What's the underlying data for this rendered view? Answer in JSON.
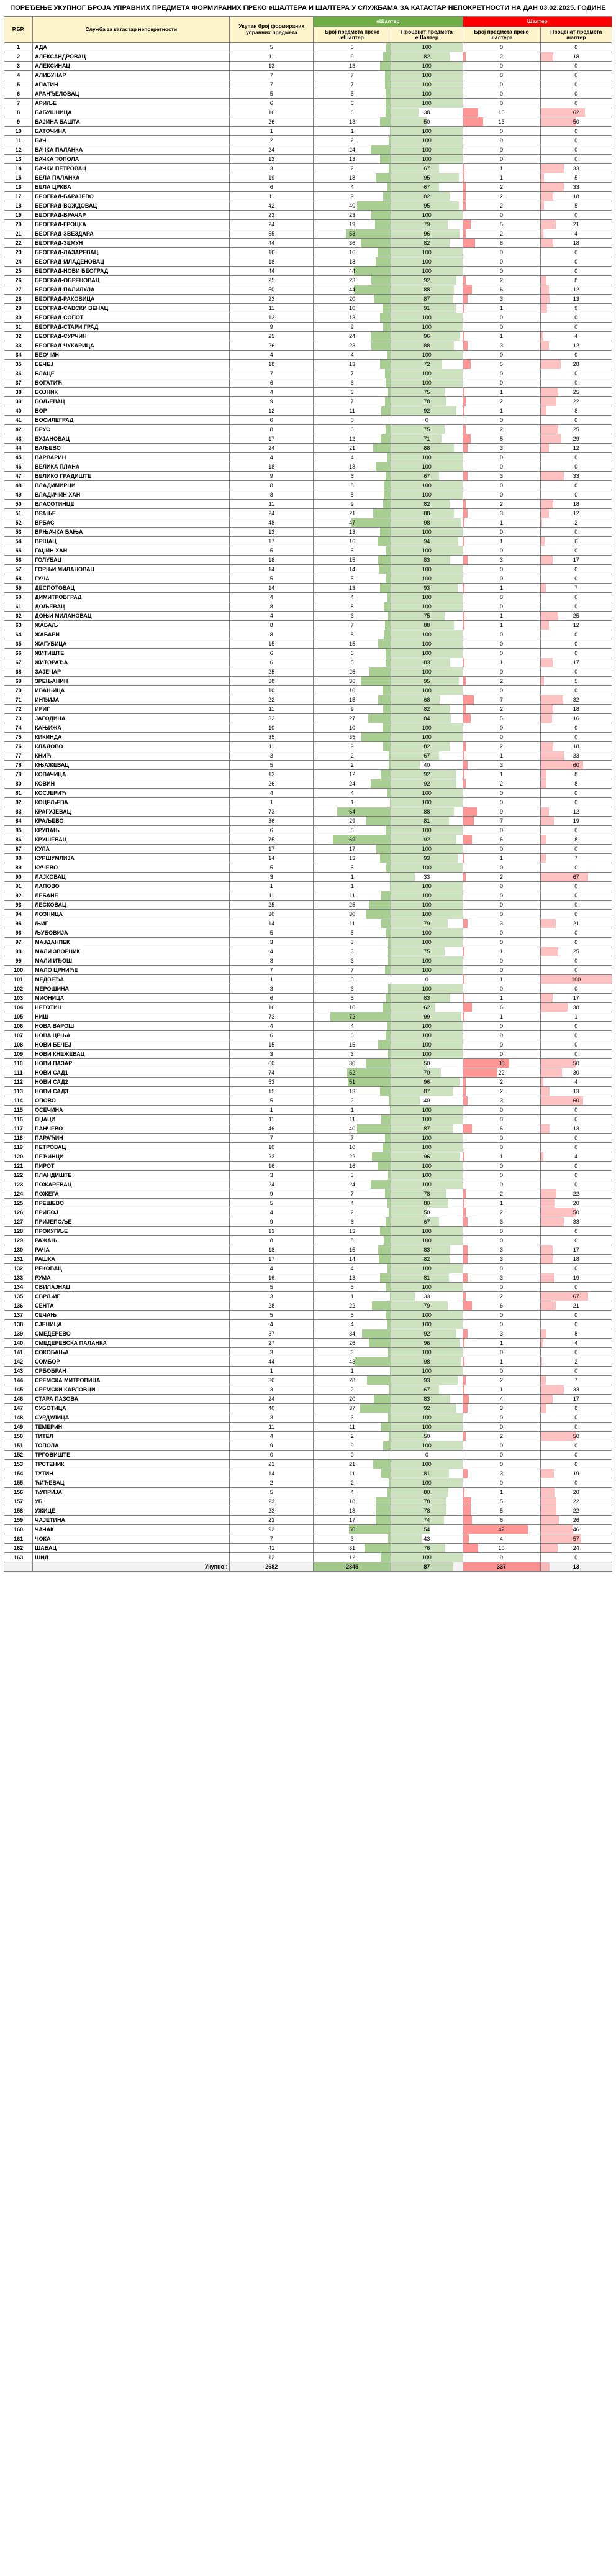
{
  "title": "ПОРЕЂЕЊЕ УКУПНОГ БРОЈА УПРАВНИХ ПРЕДМЕТА ФОРМИРАНИХ ПРЕКО еШАЛТЕРА И ШАЛТЕРА У СЛУЖБАМА ЗА КАТАСТАР НЕПОКРЕТНОСТИ НА ДАН 03.02.2025. ГОДИНЕ",
  "headers": {
    "rb": "Р.БР.",
    "name": "Служба за катастар непокретности",
    "total": "Укупан број формираних управних предмета",
    "e_group": "еШалтер",
    "e_count": "Број предмета преко еШалтер",
    "e_pct": "Проценат предмета еШалтер",
    "s_group": "Шалтер",
    "s_count": "Број предмета преко шалтера",
    "s_pct": "Проценат предмета шалтер"
  },
  "style": {
    "max_e_count": 92,
    "max_s_count": 50,
    "total_e_max": 2345,
    "total_s_max": 337,
    "e_fill": "#70ad47",
    "s_fill": "#ff5050"
  },
  "total_row": {
    "label": "Укупно :",
    "total": 2682,
    "e_count": 2345,
    "e_pct": 87,
    "s_count": 337,
    "s_pct": 13
  },
  "rows": [
    {
      "n": "АДА",
      "t": 5,
      "ec": 5,
      "ep": 100,
      "sc": 0,
      "sp": 0
    },
    {
      "n": "АЛЕКСАНДРОВАЦ",
      "t": 11,
      "ec": 9,
      "ep": 82,
      "sc": 2,
      "sp": 18
    },
    {
      "n": "АЛЕКСИНАЦ",
      "t": 13,
      "ec": 13,
      "ep": 100,
      "sc": 0,
      "sp": 0
    },
    {
      "n": "АЛИБУНАР",
      "t": 7,
      "ec": 7,
      "ep": 100,
      "sc": 0,
      "sp": 0
    },
    {
      "n": "АПАТИН",
      "t": 7,
      "ec": 7,
      "ep": 100,
      "sc": 0,
      "sp": 0
    },
    {
      "n": "АРАНЂЕЛОВАЦ",
      "t": 5,
      "ec": 5,
      "ep": 100,
      "sc": 0,
      "sp": 0
    },
    {
      "n": "АРИЉЕ",
      "t": 6,
      "ec": 6,
      "ep": 100,
      "sc": 0,
      "sp": 0
    },
    {
      "n": "БАБУШНИЦА",
      "t": 16,
      "ec": 6,
      "ep": 38,
      "sc": 10,
      "sp": 62
    },
    {
      "n": "БАЈИНА БАШТА",
      "t": 26,
      "ec": 13,
      "ep": 50,
      "sc": 13,
      "sp": 50
    },
    {
      "n": "БАТОЧИНА",
      "t": 1,
      "ec": 1,
      "ep": 100,
      "sc": 0,
      "sp": 0
    },
    {
      "n": "БАЧ",
      "t": 2,
      "ec": 2,
      "ep": 100,
      "sc": 0,
      "sp": 0
    },
    {
      "n": "БАЧКА ПАЛАНКА",
      "t": 24,
      "ec": 24,
      "ep": 100,
      "sc": 0,
      "sp": 0
    },
    {
      "n": "БАЧКА ТОПОЛА",
      "t": 13,
      "ec": 13,
      "ep": 100,
      "sc": 0,
      "sp": 0
    },
    {
      "n": "БАЧКИ ПЕТРОВАЦ",
      "t": 3,
      "ec": 2,
      "ep": 67,
      "sc": 1,
      "sp": 33
    },
    {
      "n": "БЕЛА ПАЛАНКА",
      "t": 19,
      "ec": 18,
      "ep": 95,
      "sc": 1,
      "sp": 5
    },
    {
      "n": "БЕЛА ЦРКВА",
      "t": 6,
      "ec": 4,
      "ep": 67,
      "sc": 2,
      "sp": 33
    },
    {
      "n": "БЕОГРАД-БАРАЈЕВО",
      "t": 11,
      "ec": 9,
      "ep": 82,
      "sc": 2,
      "sp": 18
    },
    {
      "n": "БЕОГРАД-ВОЖДОВАЦ",
      "t": 42,
      "ec": 40,
      "ep": 95,
      "sc": 2,
      "sp": 5
    },
    {
      "n": "БЕОГРАД-ВРАЧАР",
      "t": 23,
      "ec": 23,
      "ep": 100,
      "sc": 0,
      "sp": 0
    },
    {
      "n": "БЕОГРАД-ГРОЦКА",
      "t": 24,
      "ec": 19,
      "ep": 79,
      "sc": 5,
      "sp": 21
    },
    {
      "n": "БЕОГРАД-ЗВЕЗДАРА",
      "t": 55,
      "ec": 53,
      "ep": 96,
      "sc": 2,
      "sp": 4
    },
    {
      "n": "БЕОГРАД-ЗЕМУН",
      "t": 44,
      "ec": 36,
      "ep": 82,
      "sc": 8,
      "sp": 18
    },
    {
      "n": "БЕОГРАД-ЛАЗАРЕВАЦ",
      "t": 16,
      "ec": 16,
      "ep": 100,
      "sc": 0,
      "sp": 0
    },
    {
      "n": "БЕОГРАД-МЛАДЕНОВАЦ",
      "t": 18,
      "ec": 18,
      "ep": 100,
      "sc": 0,
      "sp": 0
    },
    {
      "n": "БЕОГРАД-НОВИ БЕОГРАД",
      "t": 44,
      "ec": 44,
      "ep": 100,
      "sc": 0,
      "sp": 0
    },
    {
      "n": "БЕОГРАД-ОБРЕНОВАЦ",
      "t": 25,
      "ec": 23,
      "ep": 92,
      "sc": 2,
      "sp": 8
    },
    {
      "n": "БЕОГРАД-ПАЛИЛУЛА",
      "t": 50,
      "ec": 44,
      "ep": 88,
      "sc": 6,
      "sp": 12
    },
    {
      "n": "БЕОГРАД-РАКОВИЦА",
      "t": 23,
      "ec": 20,
      "ep": 87,
      "sc": 3,
      "sp": 13
    },
    {
      "n": "БЕОГРАД-САВСКИ ВЕНАЦ",
      "t": 11,
      "ec": 10,
      "ep": 91,
      "sc": 1,
      "sp": 9
    },
    {
      "n": "БЕОГРАД-СОПОТ",
      "t": 13,
      "ec": 13,
      "ep": 100,
      "sc": 0,
      "sp": 0
    },
    {
      "n": "БЕОГРАД-СТАРИ ГРАД",
      "t": 9,
      "ec": 9,
      "ep": 100,
      "sc": 0,
      "sp": 0
    },
    {
      "n": "БЕОГРАД-СУРЧИН",
      "t": 25,
      "ec": 24,
      "ep": 96,
      "sc": 1,
      "sp": 4
    },
    {
      "n": "БЕОГРАД-ЧУКАРИЦА",
      "t": 26,
      "ec": 23,
      "ep": 88,
      "sc": 3,
      "sp": 12
    },
    {
      "n": "БЕОЧИН",
      "t": 4,
      "ec": 4,
      "ep": 100,
      "sc": 0,
      "sp": 0
    },
    {
      "n": "БЕЧЕЈ",
      "t": 18,
      "ec": 13,
      "ep": 72,
      "sc": 5,
      "sp": 28
    },
    {
      "n": "БЛАЦЕ",
      "t": 7,
      "ec": 7,
      "ep": 100,
      "sc": 0,
      "sp": 0
    },
    {
      "n": "БОГАТИЋ",
      "t": 6,
      "ec": 6,
      "ep": 100,
      "sc": 0,
      "sp": 0
    },
    {
      "n": "БОЈНИК",
      "t": 4,
      "ec": 3,
      "ep": 75,
      "sc": 1,
      "sp": 25
    },
    {
      "n": "БОЉЕВАЦ",
      "t": 9,
      "ec": 7,
      "ep": 78,
      "sc": 2,
      "sp": 22
    },
    {
      "n": "БОР",
      "t": 12,
      "ec": 11,
      "ep": 92,
      "sc": 1,
      "sp": 8
    },
    {
      "n": "БОСИЛЕГРАД",
      "t": 0,
      "ec": 0,
      "ep": 0,
      "sc": 0,
      "sp": 0
    },
    {
      "n": "БРУС",
      "t": 8,
      "ec": 6,
      "ep": 75,
      "sc": 2,
      "sp": 25
    },
    {
      "n": "БУЈАНОВАЦ",
      "t": 17,
      "ec": 12,
      "ep": 71,
      "sc": 5,
      "sp": 29
    },
    {
      "n": "ВАЉЕВО",
      "t": 24,
      "ec": 21,
      "ep": 88,
      "sc": 3,
      "sp": 12
    },
    {
      "n": "ВАРВАРИН",
      "t": 4,
      "ec": 4,
      "ep": 100,
      "sc": 0,
      "sp": 0
    },
    {
      "n": "ВЕЛИКА ПЛАНА",
      "t": 18,
      "ec": 18,
      "ep": 100,
      "sc": 0,
      "sp": 0
    },
    {
      "n": "ВЕЛИКО ГРАДИШТЕ",
      "t": 9,
      "ec": 6,
      "ep": 67,
      "sc": 3,
      "sp": 33
    },
    {
      "n": "ВЛАДИМИРЦИ",
      "t": 8,
      "ec": 8,
      "ep": 100,
      "sc": 0,
      "sp": 0
    },
    {
      "n": "ВЛАДИЧИН ХАН",
      "t": 8,
      "ec": 8,
      "ep": 100,
      "sc": 0,
      "sp": 0
    },
    {
      "n": "ВЛАСОТИНЦЕ",
      "t": 11,
      "ec": 9,
      "ep": 82,
      "sc": 2,
      "sp": 18
    },
    {
      "n": "ВРАЊЕ",
      "t": 24,
      "ec": 21,
      "ep": 88,
      "sc": 3,
      "sp": 12
    },
    {
      "n": "ВРБАС",
      "t": 48,
      "ec": 47,
      "ep": 98,
      "sc": 1,
      "sp": 2
    },
    {
      "n": "ВРЊАЧКА БАЊА",
      "t": 13,
      "ec": 13,
      "ep": 100,
      "sc": 0,
      "sp": 0
    },
    {
      "n": "ВРШАЦ",
      "t": 17,
      "ec": 16,
      "ep": 94,
      "sc": 1,
      "sp": 6
    },
    {
      "n": "ГАЏИН ХАН",
      "t": 5,
      "ec": 5,
      "ep": 100,
      "sc": 0,
      "sp": 0
    },
    {
      "n": "ГОЛУБАЦ",
      "t": 18,
      "ec": 15,
      "ep": 83,
      "sc": 3,
      "sp": 17
    },
    {
      "n": "ГОРЊИ МИЛАНОВАЦ",
      "t": 14,
      "ec": 14,
      "ep": 100,
      "sc": 0,
      "sp": 0
    },
    {
      "n": "ГУЧА",
      "t": 5,
      "ec": 5,
      "ep": 100,
      "sc": 0,
      "sp": 0
    },
    {
      "n": "ДЕСПОТОВАЦ",
      "t": 14,
      "ec": 13,
      "ep": 93,
      "sc": 1,
      "sp": 7
    },
    {
      "n": "ДИМИТРОВГРАД",
      "t": 4,
      "ec": 4,
      "ep": 100,
      "sc": 0,
      "sp": 0
    },
    {
      "n": "ДОЉЕВАЦ",
      "t": 8,
      "ec": 8,
      "ep": 100,
      "sc": 0,
      "sp": 0
    },
    {
      "n": "ДОЊИ МИЛАНОВАЦ",
      "t": 4,
      "ec": 3,
      "ep": 75,
      "sc": 1,
      "sp": 25
    },
    {
      "n": "ЖАБАЉ",
      "t": 8,
      "ec": 7,
      "ep": 88,
      "sc": 1,
      "sp": 12
    },
    {
      "n": "ЖАБАРИ",
      "t": 8,
      "ec": 8,
      "ep": 100,
      "sc": 0,
      "sp": 0
    },
    {
      "n": "ЖАГУБИЦА",
      "t": 15,
      "ec": 15,
      "ep": 100,
      "sc": 0,
      "sp": 0
    },
    {
      "n": "ЖИТИШТЕ",
      "t": 6,
      "ec": 6,
      "ep": 100,
      "sc": 0,
      "sp": 0
    },
    {
      "n": "ЖИТОРАЂА",
      "t": 6,
      "ec": 5,
      "ep": 83,
      "sc": 1,
      "sp": 17
    },
    {
      "n": "ЗАЈЕЧАР",
      "t": 25,
      "ec": 25,
      "ep": 100,
      "sc": 0,
      "sp": 0
    },
    {
      "n": "ЗРЕЊАНИН",
      "t": 38,
      "ec": 36,
      "ep": 95,
      "sc": 2,
      "sp": 5
    },
    {
      "n": "ИВАЊИЦА",
      "t": 10,
      "ec": 10,
      "ep": 100,
      "sc": 0,
      "sp": 0
    },
    {
      "n": "ИНЂИЈА",
      "t": 22,
      "ec": 15,
      "ep": 68,
      "sc": 7,
      "sp": 32
    },
    {
      "n": "ИРИГ",
      "t": 11,
      "ec": 9,
      "ep": 82,
      "sc": 2,
      "sp": 18
    },
    {
      "n": "ЈАГОДИНА",
      "t": 32,
      "ec": 27,
      "ep": 84,
      "sc": 5,
      "sp": 16
    },
    {
      "n": "КАЊИЖА",
      "t": 10,
      "ec": 10,
      "ep": 100,
      "sc": 0,
      "sp": 0
    },
    {
      "n": "КИКИНДА",
      "t": 35,
      "ec": 35,
      "ep": 100,
      "sc": 0,
      "sp": 0
    },
    {
      "n": "КЛАДОВО",
      "t": 11,
      "ec": 9,
      "ep": 82,
      "sc": 2,
      "sp": 18
    },
    {
      "n": "КНИЋ",
      "t": 3,
      "ec": 2,
      "ep": 67,
      "sc": 1,
      "sp": 33
    },
    {
      "n": "КЊАЖЕВАЦ",
      "t": 5,
      "ec": 2,
      "ep": 40,
      "sc": 3,
      "sp": 60
    },
    {
      "n": "КОВАЧИЦА",
      "t": 13,
      "ec": 12,
      "ep": 92,
      "sc": 1,
      "sp": 8
    },
    {
      "n": "КОВИН",
      "t": 26,
      "ec": 24,
      "ep": 92,
      "sc": 2,
      "sp": 8
    },
    {
      "n": "КОСЈЕРИЋ",
      "t": 4,
      "ec": 4,
      "ep": 100,
      "sc": 0,
      "sp": 0
    },
    {
      "n": "КОЦЕЉЕВА",
      "t": 1,
      "ec": 1,
      "ep": 100,
      "sc": 0,
      "sp": 0
    },
    {
      "n": "КРАГУЈЕВАЦ",
      "t": 73,
      "ec": 64,
      "ep": 88,
      "sc": 9,
      "sp": 12
    },
    {
      "n": "КРАЉЕВО",
      "t": 36,
      "ec": 29,
      "ep": 81,
      "sc": 7,
      "sp": 19
    },
    {
      "n": "КРУПАЊ",
      "t": 6,
      "ec": 6,
      "ep": 100,
      "sc": 0,
      "sp": 0
    },
    {
      "n": "КРУШЕВАЦ",
      "t": 75,
      "ec": 69,
      "ep": 92,
      "sc": 6,
      "sp": 8
    },
    {
      "n": "КУЛА",
      "t": 17,
      "ec": 17,
      "ep": 100,
      "sc": 0,
      "sp": 0
    },
    {
      "n": "КУРШУМЛИЈА",
      "t": 14,
      "ec": 13,
      "ep": 93,
      "sc": 1,
      "sp": 7
    },
    {
      "n": "КУЧЕВО",
      "t": 5,
      "ec": 5,
      "ep": 100,
      "sc": 0,
      "sp": 0
    },
    {
      "n": "ЛАЈКОВАЦ",
      "t": 3,
      "ec": 1,
      "ep": 33,
      "sc": 2,
      "sp": 67
    },
    {
      "n": "ЛАПОВО",
      "t": 1,
      "ec": 1,
      "ep": 100,
      "sc": 0,
      "sp": 0
    },
    {
      "n": "ЛЕБАНЕ",
      "t": 11,
      "ec": 11,
      "ep": 100,
      "sc": 0,
      "sp": 0
    },
    {
      "n": "ЛЕСКОВАЦ",
      "t": 25,
      "ec": 25,
      "ep": 100,
      "sc": 0,
      "sp": 0
    },
    {
      "n": "ЛОЗНИЦА",
      "t": 30,
      "ec": 30,
      "ep": 100,
      "sc": 0,
      "sp": 0
    },
    {
      "n": "ЉИГ",
      "t": 14,
      "ec": 11,
      "ep": 79,
      "sc": 3,
      "sp": 21
    },
    {
      "n": "ЉУБОВИЈА",
      "t": 5,
      "ec": 5,
      "ep": 100,
      "sc": 0,
      "sp": 0
    },
    {
      "n": "МАЈДАНПЕК",
      "t": 3,
      "ec": 3,
      "ep": 100,
      "sc": 0,
      "sp": 0
    },
    {
      "n": "МАЛИ ЗВОРНИК",
      "t": 4,
      "ec": 3,
      "ep": 75,
      "sc": 1,
      "sp": 25
    },
    {
      "n": "МАЛИ ИЂОШ",
      "t": 3,
      "ec": 3,
      "ep": 100,
      "sc": 0,
      "sp": 0
    },
    {
      "n": "МАЛО ЦРНИЋЕ",
      "t": 7,
      "ec": 7,
      "ep": 100,
      "sc": 0,
      "sp": 0
    },
    {
      "n": "МЕДВЕЂА",
      "t": 1,
      "ec": 0,
      "ep": 0,
      "sc": 1,
      "sp": 100
    },
    {
      "n": "МЕРОШИНА",
      "t": 3,
      "ec": 3,
      "ep": 100,
      "sc": 0,
      "sp": 0
    },
    {
      "n": "МИОНИЦА",
      "t": 6,
      "ec": 5,
      "ep": 83,
      "sc": 1,
      "sp": 17
    },
    {
      "n": "НЕГОТИН",
      "t": 16,
      "ec": 10,
      "ep": 62,
      "sc": 6,
      "sp": 38
    },
    {
      "n": "НИШ",
      "t": 73,
      "ec": 72,
      "ep": 99,
      "sc": 1,
      "sp": 1
    },
    {
      "n": "НОВА ВАРОШ",
      "t": 4,
      "ec": 4,
      "ep": 100,
      "sc": 0,
      "sp": 0
    },
    {
      "n": "НОВА ЦРЊА",
      "t": 6,
      "ec": 6,
      "ep": 100,
      "sc": 0,
      "sp": 0
    },
    {
      "n": "НОВИ БЕЧЕЈ",
      "t": 15,
      "ec": 15,
      "ep": 100,
      "sc": 0,
      "sp": 0
    },
    {
      "n": "НОВИ КНЕЖЕВАЦ",
      "t": 3,
      "ec": 3,
      "ep": 100,
      "sc": 0,
      "sp": 0
    },
    {
      "n": "НОВИ ПАЗАР",
      "t": 60,
      "ec": 30,
      "ep": 50,
      "sc": 30,
      "sp": 50
    },
    {
      "n": "НОВИ САД1",
      "t": 74,
      "ec": 52,
      "ep": 70,
      "sc": 22,
      "sp": 30
    },
    {
      "n": "НОВИ САД2",
      "t": 53,
      "ec": 51,
      "ep": 96,
      "sc": 2,
      "sp": 4
    },
    {
      "n": "НОВИ САД3",
      "t": 15,
      "ec": 13,
      "ep": 87,
      "sc": 2,
      "sp": 13
    },
    {
      "n": "ОПОВО",
      "t": 5,
      "ec": 2,
      "ep": 40,
      "sc": 3,
      "sp": 60
    },
    {
      "n": "ОСЕЧИНА",
      "t": 1,
      "ec": 1,
      "ep": 100,
      "sc": 0,
      "sp": 0
    },
    {
      "n": "ОЏАЦИ",
      "t": 11,
      "ec": 11,
      "ep": 100,
      "sc": 0,
      "sp": 0
    },
    {
      "n": "ПАНЧЕВО",
      "t": 46,
      "ec": 40,
      "ep": 87,
      "sc": 6,
      "sp": 13
    },
    {
      "n": "ПАРАЋИН",
      "t": 7,
      "ec": 7,
      "ep": 100,
      "sc": 0,
      "sp": 0
    },
    {
      "n": "ПЕТРОВАЦ",
      "t": 10,
      "ec": 10,
      "ep": 100,
      "sc": 0,
      "sp": 0
    },
    {
      "n": "ПЕЋИНЦИ",
      "t": 23,
      "ec": 22,
      "ep": 96,
      "sc": 1,
      "sp": 4
    },
    {
      "n": "ПИРОТ",
      "t": 16,
      "ec": 16,
      "ep": 100,
      "sc": 0,
      "sp": 0
    },
    {
      "n": "ПЛАНДИШТЕ",
      "t": 3,
      "ec": 3,
      "ep": 100,
      "sc": 0,
      "sp": 0
    },
    {
      "n": "ПОЖАРЕВАЦ",
      "t": 24,
      "ec": 24,
      "ep": 100,
      "sc": 0,
      "sp": 0
    },
    {
      "n": "ПОЖЕГА",
      "t": 9,
      "ec": 7,
      "ep": 78,
      "sc": 2,
      "sp": 22
    },
    {
      "n": "ПРЕШЕВО",
      "t": 5,
      "ec": 4,
      "ep": 80,
      "sc": 1,
      "sp": 20
    },
    {
      "n": "ПРИБОЈ",
      "t": 4,
      "ec": 2,
      "ep": 50,
      "sc": 2,
      "sp": 50
    },
    {
      "n": "ПРИЈЕПОЉЕ",
      "t": 9,
      "ec": 6,
      "ep": 67,
      "sc": 3,
      "sp": 33
    },
    {
      "n": "ПРОКУПЉЕ",
      "t": 13,
      "ec": 13,
      "ep": 100,
      "sc": 0,
      "sp": 0
    },
    {
      "n": "РАЖАЊ",
      "t": 8,
      "ec": 8,
      "ep": 100,
      "sc": 0,
      "sp": 0
    },
    {
      "n": "РАЧА",
      "t": 18,
      "ec": 15,
      "ep": 83,
      "sc": 3,
      "sp": 17
    },
    {
      "n": "РАШКА",
      "t": 17,
      "ec": 14,
      "ep": 82,
      "sc": 3,
      "sp": 18
    },
    {
      "n": "РЕКОВАЦ",
      "t": 4,
      "ec": 4,
      "ep": 100,
      "sc": 0,
      "sp": 0
    },
    {
      "n": "РУМА",
      "t": 16,
      "ec": 13,
      "ep": 81,
      "sc": 3,
      "sp": 19
    },
    {
      "n": "СВИЛАЈНАЦ",
      "t": 5,
      "ec": 5,
      "ep": 100,
      "sc": 0,
      "sp": 0
    },
    {
      "n": "СВРЉИГ",
      "t": 3,
      "ec": 1,
      "ep": 33,
      "sc": 2,
      "sp": 67
    },
    {
      "n": "СЕНТА",
      "t": 28,
      "ec": 22,
      "ep": 79,
      "sc": 6,
      "sp": 21
    },
    {
      "n": "СЕЧАЊ",
      "t": 5,
      "ec": 5,
      "ep": 100,
      "sc": 0,
      "sp": 0
    },
    {
      "n": "СЈЕНИЦА",
      "t": 4,
      "ec": 4,
      "ep": 100,
      "sc": 0,
      "sp": 0
    },
    {
      "n": "СМЕДЕРЕВО",
      "t": 37,
      "ec": 34,
      "ep": 92,
      "sc": 3,
      "sp": 8
    },
    {
      "n": "СМЕДЕРЕВСКА ПАЛАНКА",
      "t": 27,
      "ec": 26,
      "ep": 96,
      "sc": 1,
      "sp": 4
    },
    {
      "n": "СОКОБАЊА",
      "t": 3,
      "ec": 3,
      "ep": 100,
      "sc": 0,
      "sp": 0
    },
    {
      "n": "СОМБОР",
      "t": 44,
      "ec": 43,
      "ep": 98,
      "sc": 1,
      "sp": 2
    },
    {
      "n": "СРБОБРАН",
      "t": 1,
      "ec": 1,
      "ep": 100,
      "sc": 0,
      "sp": 0
    },
    {
      "n": "СРЕМСКА МИТРОВИЦА",
      "t": 30,
      "ec": 28,
      "ep": 93,
      "sc": 2,
      "sp": 7
    },
    {
      "n": "СРЕМСКИ КАРЛОВЦИ",
      "t": 3,
      "ec": 2,
      "ep": 67,
      "sc": 1,
      "sp": 33
    },
    {
      "n": "СТАРА ПАЗОВА",
      "t": 24,
      "ec": 20,
      "ep": 83,
      "sc": 4,
      "sp": 17
    },
    {
      "n": "СУБОТИЦА",
      "t": 40,
      "ec": 37,
      "ep": 92,
      "sc": 3,
      "sp": 8
    },
    {
      "n": "СУРДУЛИЦА",
      "t": 3,
      "ec": 3,
      "ep": 100,
      "sc": 0,
      "sp": 0
    },
    {
      "n": "ТЕМЕРИН",
      "t": 11,
      "ec": 11,
      "ep": 100,
      "sc": 0,
      "sp": 0
    },
    {
      "n": "ТИТЕЛ",
      "t": 4,
      "ec": 2,
      "ep": 50,
      "sc": 2,
      "sp": 50
    },
    {
      "n": "ТОПОЛА",
      "t": 9,
      "ec": 9,
      "ep": 100,
      "sc": 0,
      "sp": 0
    },
    {
      "n": "ТРГОВИШТЕ",
      "t": 0,
      "ec": 0,
      "ep": 0,
      "sc": 0,
      "sp": 0
    },
    {
      "n": "ТРСТЕНИК",
      "t": 21,
      "ec": 21,
      "ep": 100,
      "sc": 0,
      "sp": 0
    },
    {
      "n": "ТУТИН",
      "t": 14,
      "ec": 11,
      "ep": 81,
      "sc": 3,
      "sp": 19
    },
    {
      "n": "ЋИЋЕВАЦ",
      "t": 2,
      "ec": 2,
      "ep": 100,
      "sc": 0,
      "sp": 0
    },
    {
      "n": "ЋУПРИЈА",
      "t": 5,
      "ec": 4,
      "ep": 80,
      "sc": 1,
      "sp": 20
    },
    {
      "n": "УБ",
      "t": 23,
      "ec": 18,
      "ep": 78,
      "sc": 5,
      "sp": 22
    },
    {
      "n": "УЖИЦЕ",
      "t": 23,
      "ec": 18,
      "ep": 78,
      "sc": 5,
      "sp": 22
    },
    {
      "n": "ЧАЈЕТИНА",
      "t": 23,
      "ec": 17,
      "ep": 74,
      "sc": 6,
      "sp": 26
    },
    {
      "n": "ЧАЧАК",
      "t": 92,
      "ec": 50,
      "ep": 54,
      "sc": 42,
      "sp": 46
    },
    {
      "n": "ЧОКА",
      "t": 7,
      "ec": 3,
      "ep": 43,
      "sc": 4,
      "sp": 57
    },
    {
      "n": "ШАБАЦ",
      "t": 41,
      "ec": 31,
      "ep": 76,
      "sc": 10,
      "sp": 24
    },
    {
      "n": "ШИД",
      "t": 12,
      "ec": 12,
      "ep": 100,
      "sc": 0,
      "sp": 0
    }
  ]
}
